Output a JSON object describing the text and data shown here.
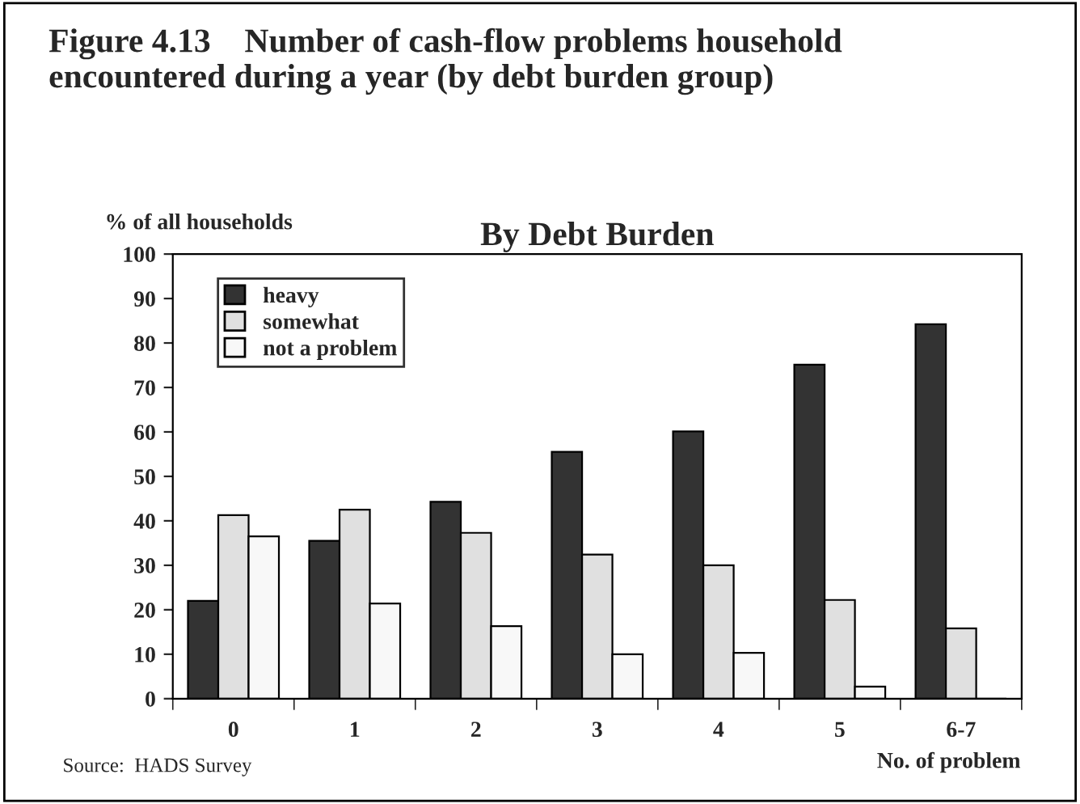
{
  "chart_data": {
    "type": "bar",
    "title": "Figure 4.13    Number of cash-flow problems household\nencountered during a year (by debt burden group)",
    "subtitle": "By Debt Burden",
    "ylabel": "% of all households",
    "xlabel": "No. of problem",
    "categories": [
      "0",
      "1",
      "2",
      "3",
      "4",
      "5",
      "6-7"
    ],
    "series": [
      {
        "name": "heavy",
        "color": "#333333",
        "values": [
          22,
          35.5,
          44.3,
          55.5,
          60.1,
          75.1,
          84.2
        ]
      },
      {
        "name": "somewhat",
        "color": "#e0e0e0",
        "values": [
          41.3,
          42.5,
          37.3,
          32.4,
          30,
          22.2,
          15.8
        ]
      },
      {
        "name": "not a problem",
        "color": "#f8f8f8",
        "values": [
          36.5,
          21.4,
          16.3,
          10,
          10.3,
          2.7,
          0
        ]
      }
    ],
    "ylim": [
      0,
      100
    ],
    "yticks": [
      0,
      10,
      20,
      30,
      40,
      50,
      60,
      70,
      80,
      90,
      100
    ],
    "grid": false,
    "legend": "top left",
    "annotations": [
      "Source:  HADS Survey"
    ]
  }
}
